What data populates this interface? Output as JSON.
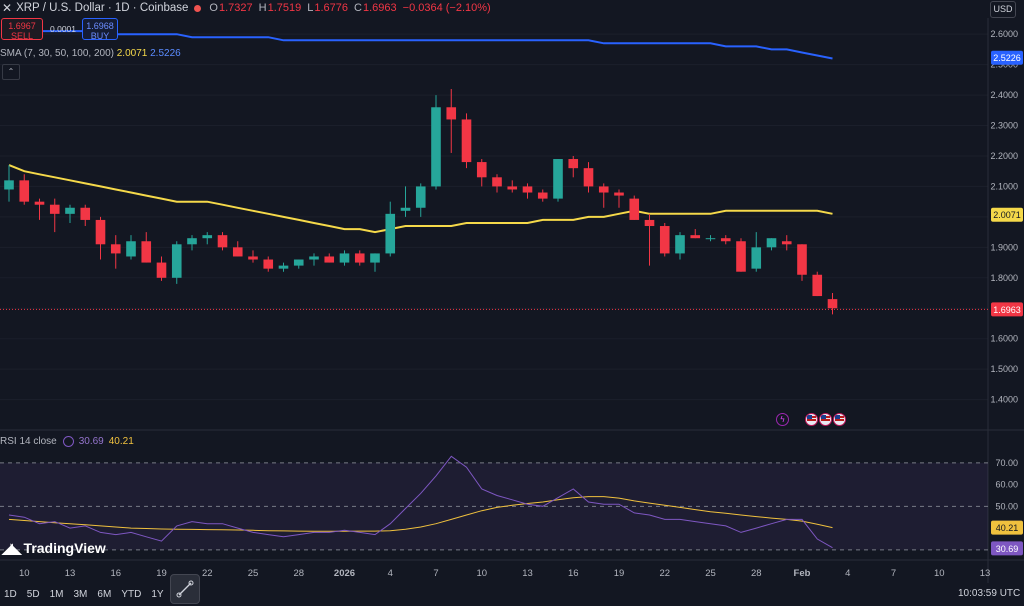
{
  "header": {
    "symbol": "XRP / U.S. Dollar · 1D · Coinbase",
    "ohlc": [
      {
        "k": "O",
        "v": "1.7327"
      },
      {
        "k": "H",
        "v": "1.7519"
      },
      {
        "k": "L",
        "v": "1.6776"
      },
      {
        "k": "C",
        "v": "1.6963"
      }
    ],
    "change": "−0.0364 (−2.10%)"
  },
  "trade": {
    "sell_price": "1.6967",
    "sell_label": "SELL",
    "spread": "0.0001",
    "buy_price": "1.6968",
    "buy_label": "BUY"
  },
  "currency": "USD",
  "sma_legend": {
    "label": "SMA (7, 30, 50, 100, 200)",
    "v1": "2.0071",
    "v2": "2.5226"
  },
  "rsi_legend": {
    "label": "RSI 14 close",
    "v1": "30.69",
    "v2": "40.21"
  },
  "logo": "TradingView",
  "timeframes": [
    "1D",
    "5D",
    "1M",
    "3M",
    "6M",
    "YTD",
    "1Y",
    "A"
  ],
  "clock": "10:03:59 UTC",
  "colors": {
    "up": "#26a69a",
    "down": "#f23645",
    "sma_short": "#f5d94a",
    "sma_long": "#2962ff",
    "rsi": "#7e57c2",
    "rsi_ma": "#f0c13e"
  },
  "icons": [
    "close-icon",
    "collapse-chevron-icon",
    "lightning-event-icon",
    "us-flag-event-icon",
    "tradingview-logo-icon",
    "drawing-tool-icon"
  ],
  "chart_data": {
    "type": "candlestick",
    "price_axis": {
      "ticks": [
        "2.6000",
        "2.5000",
        "2.4000",
        "2.3000",
        "2.2000",
        "2.1000",
        "2.0000",
        "1.9000",
        "1.8000",
        "1.7000",
        "1.6000",
        "1.5000",
        "1.4000"
      ],
      "range": [
        1.31,
        2.64
      ]
    },
    "x_ticks": [
      "10",
      "13",
      "16",
      "19",
      "22",
      "25",
      "28",
      "2026",
      "4",
      "7",
      "10",
      "13",
      "16",
      "19",
      "22",
      "25",
      "28",
      "Feb",
      "4",
      "7",
      "10",
      "13"
    ],
    "candles": [
      {
        "o": 2.09,
        "h": 2.17,
        "l": 2.05,
        "c": 2.12
      },
      {
        "o": 2.12,
        "h": 2.14,
        "l": 2.04,
        "c": 2.05
      },
      {
        "o": 2.05,
        "h": 2.06,
        "l": 1.99,
        "c": 2.04
      },
      {
        "o": 2.04,
        "h": 2.06,
        "l": 1.95,
        "c": 2.01
      },
      {
        "o": 2.01,
        "h": 2.04,
        "l": 1.98,
        "c": 2.03
      },
      {
        "o": 2.03,
        "h": 2.04,
        "l": 1.97,
        "c": 1.99
      },
      {
        "o": 1.99,
        "h": 2.0,
        "l": 1.86,
        "c": 1.91
      },
      {
        "o": 1.91,
        "h": 1.94,
        "l": 1.83,
        "c": 1.88
      },
      {
        "o": 1.87,
        "h": 1.94,
        "l": 1.86,
        "c": 1.92
      },
      {
        "o": 1.92,
        "h": 1.95,
        "l": 1.85,
        "c": 1.85
      },
      {
        "o": 1.85,
        "h": 1.87,
        "l": 1.79,
        "c": 1.8
      },
      {
        "o": 1.8,
        "h": 1.92,
        "l": 1.78,
        "c": 1.91
      },
      {
        "o": 1.91,
        "h": 1.94,
        "l": 1.89,
        "c": 1.93
      },
      {
        "o": 1.93,
        "h": 1.95,
        "l": 1.91,
        "c": 1.94
      },
      {
        "o": 1.94,
        "h": 1.95,
        "l": 1.89,
        "c": 1.9
      },
      {
        "o": 1.9,
        "h": 1.92,
        "l": 1.87,
        "c": 1.87
      },
      {
        "o": 1.87,
        "h": 1.89,
        "l": 1.85,
        "c": 1.86
      },
      {
        "o": 1.86,
        "h": 1.87,
        "l": 1.82,
        "c": 1.83
      },
      {
        "o": 1.83,
        "h": 1.85,
        "l": 1.82,
        "c": 1.84
      },
      {
        "o": 1.84,
        "h": 1.86,
        "l": 1.83,
        "c": 1.86
      },
      {
        "o": 1.86,
        "h": 1.88,
        "l": 1.84,
        "c": 1.87
      },
      {
        "o": 1.87,
        "h": 1.88,
        "l": 1.85,
        "c": 1.85
      },
      {
        "o": 1.85,
        "h": 1.89,
        "l": 1.84,
        "c": 1.88
      },
      {
        "o": 1.88,
        "h": 1.89,
        "l": 1.84,
        "c": 1.85
      },
      {
        "o": 1.85,
        "h": 1.88,
        "l": 1.82,
        "c": 1.88
      },
      {
        "o": 1.88,
        "h": 2.05,
        "l": 1.87,
        "c": 2.01
      },
      {
        "o": 2.02,
        "h": 2.1,
        "l": 2.0,
        "c": 2.03
      },
      {
        "o": 2.03,
        "h": 2.11,
        "l": 2.0,
        "c": 2.1
      },
      {
        "o": 2.1,
        "h": 2.4,
        "l": 2.09,
        "c": 2.36
      },
      {
        "o": 2.36,
        "h": 2.42,
        "l": 2.21,
        "c": 2.32
      },
      {
        "o": 2.32,
        "h": 2.34,
        "l": 2.16,
        "c": 2.18
      },
      {
        "o": 2.18,
        "h": 2.19,
        "l": 2.1,
        "c": 2.13
      },
      {
        "o": 2.13,
        "h": 2.14,
        "l": 2.08,
        "c": 2.1
      },
      {
        "o": 2.1,
        "h": 2.12,
        "l": 2.08,
        "c": 2.09
      },
      {
        "o": 2.1,
        "h": 2.11,
        "l": 2.06,
        "c": 2.08
      },
      {
        "o": 2.08,
        "h": 2.09,
        "l": 2.05,
        "c": 2.06
      },
      {
        "o": 2.06,
        "h": 2.19,
        "l": 2.05,
        "c": 2.19
      },
      {
        "o": 2.19,
        "h": 2.2,
        "l": 2.13,
        "c": 2.16
      },
      {
        "o": 2.16,
        "h": 2.18,
        "l": 2.08,
        "c": 2.1
      },
      {
        "o": 2.1,
        "h": 2.11,
        "l": 2.03,
        "c": 2.08
      },
      {
        "o": 2.08,
        "h": 2.09,
        "l": 2.03,
        "c": 2.07
      },
      {
        "o": 2.06,
        "h": 2.07,
        "l": 1.99,
        "c": 1.99
      },
      {
        "o": 1.99,
        "h": 2.01,
        "l": 1.84,
        "c": 1.97
      },
      {
        "o": 1.97,
        "h": 1.98,
        "l": 1.87,
        "c": 1.88
      },
      {
        "o": 1.88,
        "h": 1.95,
        "l": 1.86,
        "c": 1.94
      },
      {
        "o": 1.94,
        "h": 1.96,
        "l": 1.93,
        "c": 1.93
      },
      {
        "o": 1.93,
        "h": 1.94,
        "l": 1.92,
        "c": 1.93
      },
      {
        "o": 1.93,
        "h": 1.94,
        "l": 1.91,
        "c": 1.92
      },
      {
        "o": 1.92,
        "h": 1.93,
        "l": 1.82,
        "c": 1.82
      },
      {
        "o": 1.83,
        "h": 1.95,
        "l": 1.82,
        "c": 1.9
      },
      {
        "o": 1.9,
        "h": 1.93,
        "l": 1.89,
        "c": 1.93
      },
      {
        "o": 1.92,
        "h": 1.94,
        "l": 1.89,
        "c": 1.91
      },
      {
        "o": 1.91,
        "h": 1.91,
        "l": 1.79,
        "c": 1.81
      },
      {
        "o": 1.81,
        "h": 1.82,
        "l": 1.74,
        "c": 1.74
      },
      {
        "o": 1.73,
        "h": 1.75,
        "l": 1.68,
        "c": 1.7
      }
    ],
    "sma_short_values": [
      2.17,
      2.15,
      2.14,
      2.13,
      2.12,
      2.11,
      2.1,
      2.09,
      2.08,
      2.07,
      2.06,
      2.05,
      2.05,
      2.05,
      2.04,
      2.03,
      2.02,
      2.01,
      2.0,
      1.99,
      1.98,
      1.97,
      1.96,
      1.96,
      1.95,
      1.96,
      1.97,
      1.97,
      1.97,
      1.97,
      1.98,
      1.98,
      1.98,
      1.98,
      1.98,
      1.99,
      1.99,
      1.99,
      2.0,
      2.0,
      2.01,
      2.02,
      2.01,
      2.01,
      2.01,
      2.01,
      2.01,
      2.02,
      2.02,
      2.02,
      2.02,
      2.02,
      2.02,
      2.02,
      2.01
    ],
    "sma_long_values": [
      2.62,
      2.62,
      2.61,
      2.61,
      2.61,
      2.61,
      2.6,
      2.6,
      2.6,
      2.6,
      2.6,
      2.6,
      2.59,
      2.59,
      2.59,
      2.59,
      2.59,
      2.59,
      2.58,
      2.58,
      2.58,
      2.58,
      2.58,
      2.58,
      2.58,
      2.58,
      2.58,
      2.58,
      2.58,
      2.58,
      2.58,
      2.58,
      2.58,
      2.58,
      2.58,
      2.58,
      2.58,
      2.58,
      2.58,
      2.57,
      2.57,
      2.57,
      2.57,
      2.57,
      2.57,
      2.57,
      2.57,
      2.56,
      2.56,
      2.56,
      2.55,
      2.55,
      2.54,
      2.53,
      2.52
    ],
    "last_price": 1.6963,
    "sma_short_last": 2.0071,
    "sma_long_last": 2.5226,
    "rsi_axis": {
      "ticks": [
        "70.00",
        "60.00",
        "50.00"
      ],
      "range": [
        29,
        75
      ]
    },
    "rsi_values": [
      46,
      45,
      42,
      43,
      40,
      41,
      38,
      37,
      38,
      36,
      34,
      41,
      43,
      42,
      42,
      40,
      38,
      37,
      36,
      37,
      38,
      38,
      39,
      38,
      37,
      42,
      49,
      56,
      64,
      73,
      68,
      58,
      55,
      53,
      51,
      50,
      54,
      58,
      52,
      51,
      51,
      47,
      46,
      44,
      44,
      43,
      42,
      41,
      38,
      40,
      42,
      44,
      44,
      35,
      31
    ],
    "rsi_ma_values": [
      44,
      43.5,
      43,
      42.5,
      42,
      41.5,
      41,
      40.5,
      40,
      39.8,
      39.6,
      39.5,
      39.4,
      39.3,
      39.2,
      39.1,
      39,
      38.8,
      38.7,
      38.6,
      38.5,
      38.5,
      38.5,
      38.6,
      38.6,
      38.8,
      39.5,
      40.5,
      42,
      44,
      46,
      48,
      49.5,
      50.5,
      51.3,
      52,
      53,
      54,
      54.5,
      54.5,
      53.8,
      52.5,
      51.5,
      50.5,
      49.5,
      48.5,
      47.5,
      46.8,
      46,
      45.3,
      44.6,
      44,
      43.2,
      41.8,
      40.21
    ],
    "rsi_last": 30.69,
    "rsi_ma_last": 40.21
  }
}
